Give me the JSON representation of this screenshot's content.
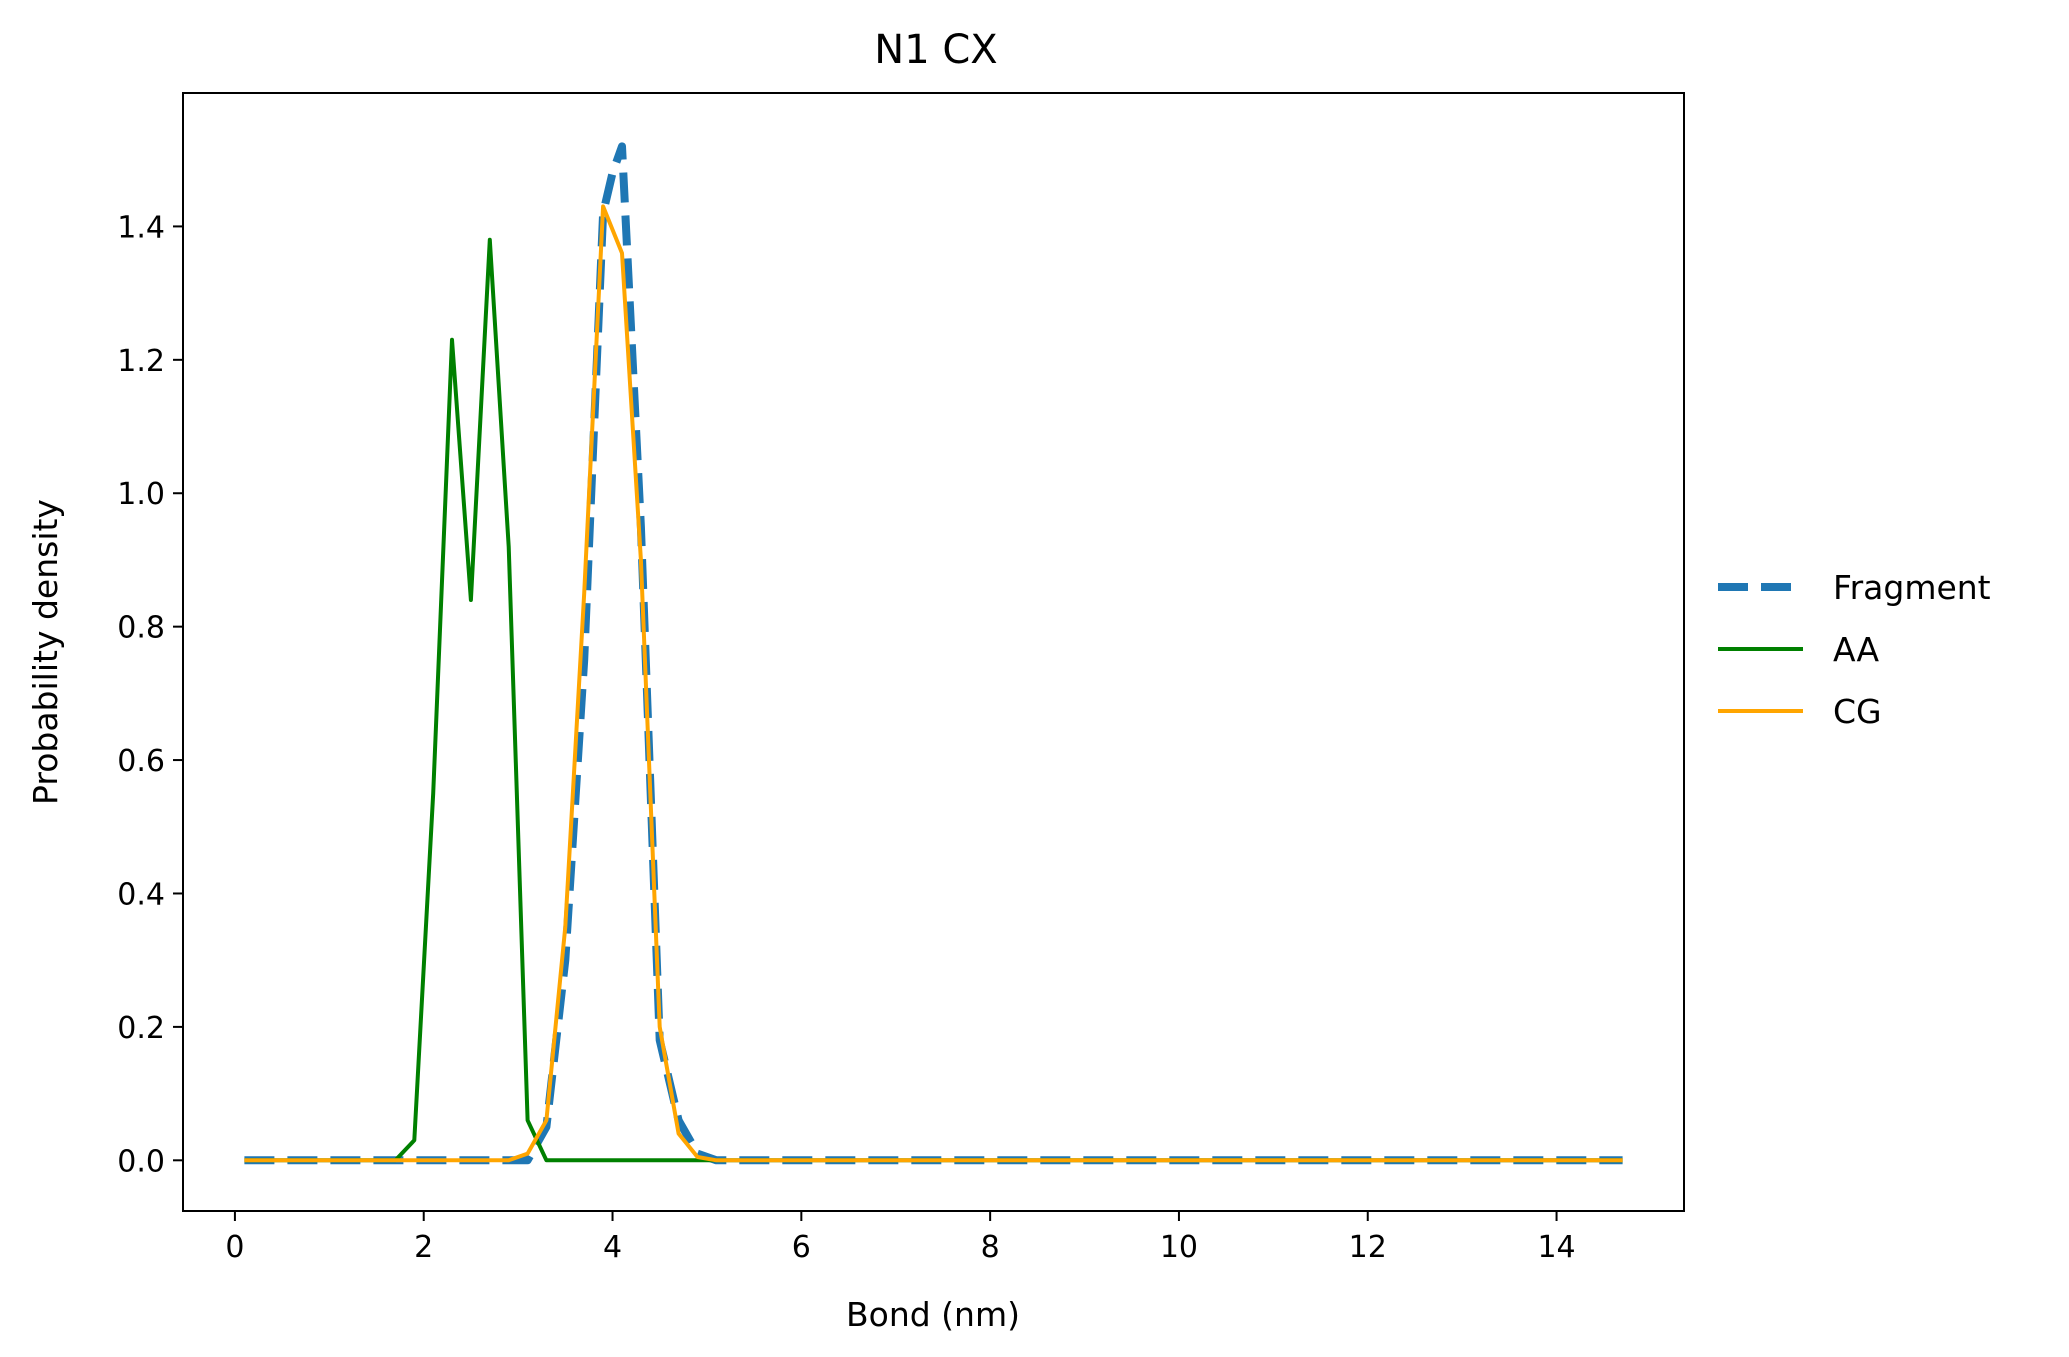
{
  "chart_data": {
    "type": "line",
    "title": "N1 CX",
    "xlabel": "Bond (nm)",
    "ylabel": "Probability density",
    "xlim": [
      -0.55,
      15.35
    ],
    "ylim": [
      -0.076,
      1.6
    ],
    "xticks": [
      0,
      2,
      4,
      6,
      8,
      10,
      12,
      14
    ],
    "yticks": [
      0.0,
      0.2,
      0.4,
      0.6,
      0.8,
      1.0,
      1.2,
      1.4
    ],
    "xtick_labels": [
      "0",
      "2",
      "4",
      "6",
      "8",
      "10",
      "12",
      "14"
    ],
    "ytick_labels": [
      "0.0",
      "0.2",
      "0.4",
      "0.6",
      "0.8",
      "1.0",
      "1.2",
      "1.4"
    ],
    "grid": false,
    "legend": {
      "position": "outside-right"
    },
    "series": [
      {
        "name": "Fragment",
        "color": "#1f77b4",
        "style": "dashed",
        "x": [
          0.1,
          2.9,
          3.1,
          3.3,
          3.5,
          3.7,
          3.9,
          4.0,
          4.1,
          4.3,
          4.5,
          4.7,
          4.9,
          5.1,
          14.7
        ],
        "y": [
          0.0,
          0.0,
          0.0,
          0.05,
          0.3,
          0.75,
          1.42,
          1.48,
          1.52,
          0.95,
          0.18,
          0.06,
          0.01,
          0.0,
          0.0
        ]
      },
      {
        "name": "AA",
        "color": "#008000",
        "style": "solid",
        "x": [
          0.1,
          1.7,
          1.9,
          2.1,
          2.3,
          2.5,
          2.7,
          2.9,
          3.1,
          3.3,
          3.5,
          14.7
        ],
        "y": [
          0.0,
          0.0,
          0.03,
          0.55,
          1.23,
          0.84,
          1.38,
          0.92,
          0.06,
          0.0,
          0.0,
          0.0
        ]
      },
      {
        "name": "CG",
        "color": "#ffa500",
        "style": "solid",
        "x": [
          0.1,
          2.9,
          3.1,
          3.3,
          3.5,
          3.7,
          3.9,
          4.1,
          4.3,
          4.5,
          4.7,
          4.9,
          5.1,
          14.7
        ],
        "y": [
          0.0,
          0.0,
          0.01,
          0.06,
          0.35,
          0.85,
          1.43,
          1.36,
          0.9,
          0.2,
          0.04,
          0.005,
          0.0,
          0.0
        ]
      }
    ]
  }
}
